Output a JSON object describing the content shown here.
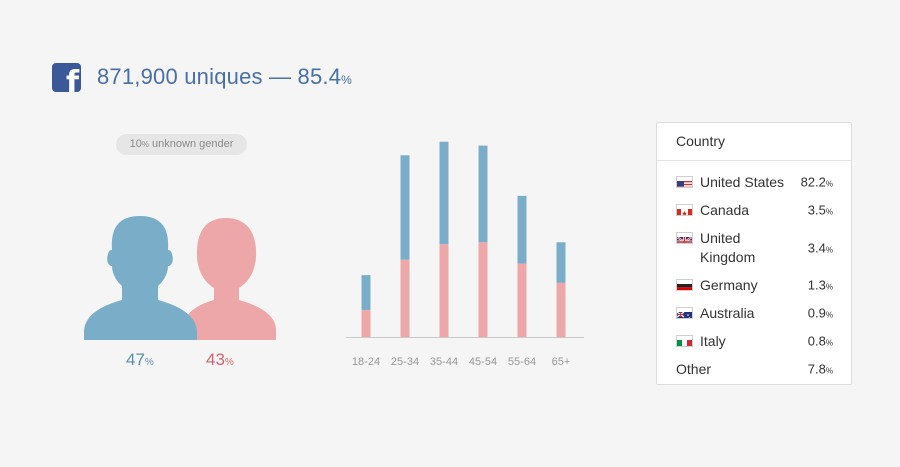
{
  "header": {
    "icon": "facebook-icon",
    "uniques_text": "871,900 uniques — 85.4",
    "pct_symbol": "%"
  },
  "gender": {
    "unknown_value": "10",
    "unknown_label": " unknown gender",
    "male_value": "47",
    "female_value": "43",
    "pct_symbol": "%",
    "colors": {
      "male": "#7aaec8",
      "female": "#eea7a9"
    }
  },
  "chart_data": {
    "type": "bar",
    "stacked": true,
    "categories": [
      "18-24",
      "25-34",
      "35-44",
      "45-54",
      "55-64",
      "65+"
    ],
    "series": [
      {
        "key": "female",
        "color": "#eea7a9",
        "values": [
          14,
          40,
          48,
          49,
          38,
          28
        ]
      },
      {
        "key": "male",
        "color": "#7aaec8",
        "values": [
          18,
          54,
          53,
          50,
          35,
          21
        ]
      }
    ],
    "ylim": [
      0,
      105
    ],
    "grid": false
  },
  "countries": {
    "title": "Country",
    "pct_symbol": "%",
    "rows": [
      {
        "flag": "us",
        "name": "United States",
        "value": "82.2"
      },
      {
        "flag": "ca",
        "name": "Canada",
        "value": "3.5"
      },
      {
        "flag": "gb",
        "name": "United Kingdom",
        "value": "3.4"
      },
      {
        "flag": "de",
        "name": "Germany",
        "value": "1.3"
      },
      {
        "flag": "au",
        "name": "Australia",
        "value": "0.9"
      },
      {
        "flag": "it",
        "name": "Italy",
        "value": "0.8"
      },
      {
        "flag": "",
        "name": "Other",
        "value": "7.8"
      }
    ]
  }
}
